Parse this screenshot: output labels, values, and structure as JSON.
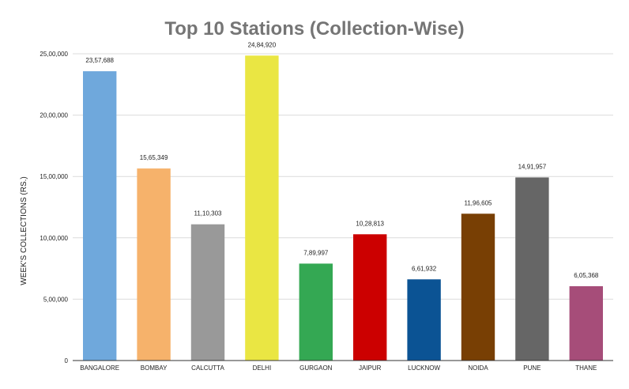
{
  "chart_data": {
    "type": "bar",
    "title": "Top 10 Stations (Collection-Wise)",
    "xlabel": "",
    "ylabel": "WEEK'S COLLECTIONS (RS.)",
    "ylim": [
      0,
      2500000
    ],
    "yticks": [
      0,
      500000,
      1000000,
      1500000,
      2000000,
      2500000
    ],
    "ytick_labels": [
      "0",
      "5,00,000",
      "10,00,000",
      "15,00,000",
      "20,00,000",
      "25,00,000"
    ],
    "grid": true,
    "legend": "none",
    "categories": [
      "BANGALORE",
      "BOMBAY",
      "CALCUTTA",
      "DELHI",
      "GURGAON",
      "JAIPUR",
      "LUCKNOW",
      "NOIDA",
      "PUNE",
      "THANE"
    ],
    "values": [
      2357688,
      1565349,
      1110303,
      2484920,
      789997,
      1028813,
      661932,
      1196605,
      1491957,
      605368
    ],
    "data_labels": [
      "23,57,688",
      "15,65,349",
      "11,10,303",
      "24,84,920",
      "7,89,997",
      "10,28,813",
      "6,61,932",
      "11,96,605",
      "14,91,957",
      "6,05,368"
    ],
    "colors": [
      "#6fa8dc",
      "#f6b26b",
      "#999999",
      "#eae643",
      "#34a853",
      "#cc0000",
      "#0b5394",
      "#783f04",
      "#666666",
      "#a64d79"
    ]
  }
}
